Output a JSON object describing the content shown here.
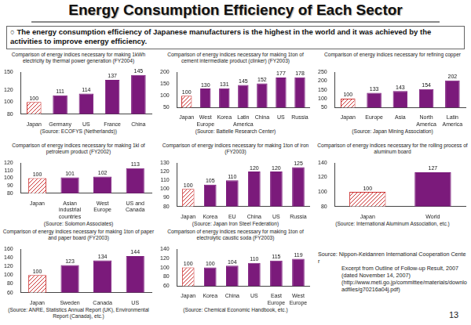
{
  "title": "Energy Consumption Efficiency of Each Sector",
  "subtitle": "○ The energy consumption efficiency of Japanese manufacturers is the highest in the world and it was achieved by the activities to improve energy efficiency.",
  "source_note": {
    "main": "Source: Nippon-Keidanren International Cooperation Center",
    "lines": [
      "Excerpt from Outline of Follow-up Result, 2007",
      "(dated November 14, 2007)",
      "(http://www.meti.go.jp/committee/materials/downloadfiles/g70216a04j.pdf)"
    ]
  },
  "page_number": 13,
  "chart_data": [
    {
      "type": "bar",
      "title": "Comparison of energy indices necessary for making 1kWh electricity by thermal power generation (FY2004)",
      "categories": [
        "Japan",
        "Germany",
        "US",
        "France",
        "China"
      ],
      "values": [
        100,
        111,
        114,
        137,
        145
      ],
      "colors": [
        "#cc3333",
        "#7b1a7b",
        "#7b1a7b",
        "#7b1a7b",
        "#7b1a7b"
      ],
      "ylim": [
        80,
        150
      ],
      "yticks": [
        80,
        100,
        120,
        150
      ],
      "grid": false,
      "data_labels": true,
      "source": "(Source: ECOFYS (Netherlands))"
    },
    {
      "type": "bar",
      "title": "Comparison of energy indices necessary for making 1ton of cement intermediate product (clinker) (FY2003)",
      "categories": [
        "Japan",
        "West Europe",
        "Korea",
        "Latin America",
        "China",
        "US",
        "Russia"
      ],
      "values": [
        100,
        130,
        131,
        145,
        152,
        177,
        178
      ],
      "colors": [
        "#cc3333",
        "#7b1a7b",
        "#7b1a7b",
        "#7b1a7b",
        "#7b1a7b",
        "#7b1a7b",
        "#7b1a7b"
      ],
      "ylim": [
        50,
        200
      ],
      "yticks": [
        50,
        100,
        150,
        200
      ],
      "grid": false,
      "data_labels": true,
      "source": "(Source: Battelle Research Center)"
    },
    {
      "type": "bar",
      "title": "Comparison of energy indices necessary for refining copper",
      "categories": [
        "Japan",
        "Europe",
        "Asia",
        "North America",
        "Latin America"
      ],
      "values": [
        100,
        133,
        143,
        154,
        202
      ],
      "colors": [
        "#cc3333",
        "#7b1a7b",
        "#7b1a7b",
        "#7b1a7b",
        "#7b1a7b"
      ],
      "ylim": [
        50,
        250
      ],
      "yticks": [
        50,
        100,
        150,
        200,
        250
      ],
      "grid": false,
      "data_labels": true,
      "source": "(Source: Japan Mining Association)"
    },
    {
      "type": "bar",
      "title": "Comparison of energy indices necessary for making 1kl of petroleum product (FY2002)",
      "categories": [
        "Japan",
        "Asian industrial countries",
        "West Europe",
        "US and Canada"
      ],
      "values": [
        100,
        101,
        102,
        113
      ],
      "colors": [
        "#cc3333",
        "#7b1a7b",
        "#7b1a7b",
        "#7b1a7b"
      ],
      "ylim": [
        80,
        120
      ],
      "yticks": [
        80,
        90,
        100,
        110,
        120
      ],
      "grid": false,
      "data_labels": true,
      "source": "(Source: Solomon Associates)"
    },
    {
      "type": "bar",
      "title": "Comparison of energy indices necessary for making 1ton of iron (FY2003)",
      "categories": [
        "Japan",
        "Korea",
        "EU",
        "China",
        "US",
        "Russia"
      ],
      "values": [
        100,
        105,
        110,
        120,
        120,
        125
      ],
      "colors": [
        "#cc3333",
        "#7b1a7b",
        "#7b1a7b",
        "#7b1a7b",
        "#7b1a7b",
        "#7b1a7b"
      ],
      "ylim": [
        80,
        130
      ],
      "yticks": [
        80,
        90,
        100,
        110,
        120,
        130
      ],
      "grid": false,
      "data_labels": true,
      "source": "(Source: Japan Iron Steel Federation)"
    },
    {
      "type": "bar",
      "title": "Comparison of energy indices necessary for the rolling process of aluminum board",
      "categories": [
        "Japan",
        "World"
      ],
      "values": [
        100,
        127
      ],
      "colors": [
        "#cc3333",
        "#7b1a7b"
      ],
      "ylim": [
        80,
        140
      ],
      "yticks": [
        80,
        100,
        120,
        140
      ],
      "grid": false,
      "data_labels": true,
      "source": "(Source: International Aluminum Association, etc.)"
    },
    {
      "type": "bar",
      "title": "Comparison of energy indices necessary for making 1ton of paper and paper board (FY2003)",
      "categories": [
        "Japan",
        "Sweden",
        "Canada",
        "US"
      ],
      "values": [
        100,
        123,
        134,
        144
      ],
      "colors": [
        "#cc3333",
        "#7b1a7b",
        "#7b1a7b",
        "#7b1a7b"
      ],
      "ylim": [
        60,
        160
      ],
      "yticks": [
        60,
        80,
        100,
        120,
        140,
        160
      ],
      "grid": false,
      "data_labels": true,
      "source": "(Source: ANRE, Statistics Annual Report (UK), Environmental Report (Canada), etc.)"
    },
    {
      "type": "bar",
      "title": "Comparison of energy indices necessary for making 1ton of electrolytic caustic soda (FY2003)",
      "categories": [
        "Japan",
        "Korea",
        "China",
        "US",
        "East Europe",
        "West Europe"
      ],
      "values": [
        100,
        100,
        104,
        110,
        115,
        119
      ],
      "colors": [
        "#cc3333",
        "#7b1a7b",
        "#7b1a7b",
        "#7b1a7b",
        "#7b1a7b",
        "#7b1a7b"
      ],
      "ylim": [
        60,
        140
      ],
      "yticks": [
        60,
        80,
        100,
        120,
        140
      ],
      "grid": false,
      "data_labels": true,
      "source": "(Source: Chemical Economic Handbook, etc.)"
    }
  ]
}
